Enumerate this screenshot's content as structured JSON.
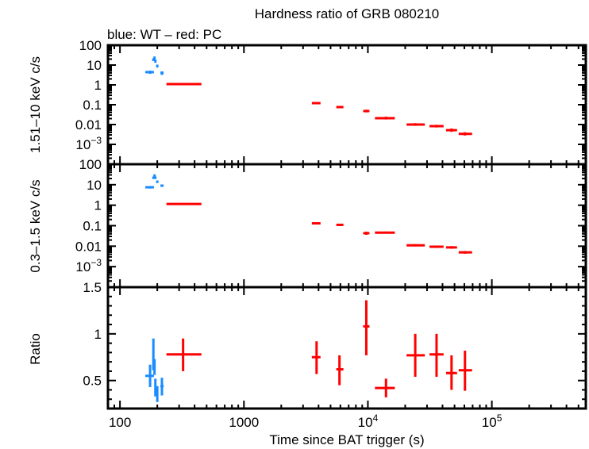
{
  "title": "Hardness ratio of GRB 080210",
  "subtitle": "blue: WT – red: PC",
  "xlabel": "Time since BAT trigger (s)",
  "colors": {
    "WT": "#1a8cff",
    "PC": "#ff0000",
    "frame": "#000000"
  },
  "chart_data": [
    {
      "type": "scatter",
      "panel": "hard band",
      "ylabel": "1.51–10 keV c/s",
      "xscale": "log",
      "yscale": "log",
      "xlim": [
        80,
        573000
      ],
      "ylim": [
        0.0001,
        100
      ],
      "x_ticks": [
        100,
        1000,
        10000,
        100000
      ],
      "y_ticks": [
        100,
        10,
        1,
        0.1,
        0.01,
        0.001
      ],
      "y_tick_labels": [
        "100",
        "10",
        "1",
        "0.1",
        "0.01",
        "10^−3"
      ],
      "series": [
        {
          "mode": "WT",
          "color": "#1a8cff",
          "points": [
            {
              "x": 175,
              "xlo": 160,
              "xhi": 188,
              "y": 4.4,
              "ylo": 3.6,
              "yhi": 5.2
            },
            {
              "x": 186,
              "xlo": 184,
              "xhi": 189,
              "y": 19,
              "ylo": 16,
              "yhi": 22
            },
            {
              "x": 190,
              "xlo": 188,
              "xhi": 192,
              "y": 23,
              "ylo": 19,
              "yhi": 27
            },
            {
              "x": 193,
              "xlo": 191,
              "xhi": 195,
              "y": 16,
              "ylo": 13,
              "yhi": 19
            },
            {
              "x": 200,
              "xlo": 198,
              "xhi": 202,
              "y": 9,
              "ylo": 7.5,
              "yhi": 10.5
            },
            {
              "x": 218,
              "xlo": 212,
              "xhi": 225,
              "y": 4,
              "ylo": 3.2,
              "yhi": 4.8
            }
          ]
        },
        {
          "mode": "PC",
          "color": "#ff0000",
          "points": [
            {
              "x": 323,
              "xlo": 237,
              "xhi": 454,
              "y": 1.1,
              "ylo": 1.0,
              "yhi": 1.25
            },
            {
              "x": 3855,
              "xlo": 3530,
              "xhi": 4150,
              "y": 0.12,
              "ylo": 0.105,
              "yhi": 0.135
            },
            {
              "x": 5900,
              "xlo": 5560,
              "xhi": 6350,
              "y": 0.076,
              "ylo": 0.066,
              "yhi": 0.087
            },
            {
              "x": 9710,
              "xlo": 9160,
              "xhi": 10300,
              "y": 0.048,
              "ylo": 0.041,
              "yhi": 0.056
            },
            {
              "x": 14000,
              "xlo": 11400,
              "xhi": 16500,
              "y": 0.021,
              "ylo": 0.018,
              "yhi": 0.025
            },
            {
              "x": 24100,
              "xlo": 20500,
              "xhi": 28800,
              "y": 0.01,
              "ylo": 0.0086,
              "yhi": 0.0118
            },
            {
              "x": 35800,
              "xlo": 31400,
              "xhi": 40800,
              "y": 0.0083,
              "ylo": 0.0071,
              "yhi": 0.0097
            },
            {
              "x": 47300,
              "xlo": 42700,
              "xhi": 52400,
              "y": 0.0052,
              "ylo": 0.0043,
              "yhi": 0.0063
            },
            {
              "x": 60700,
              "xlo": 54000,
              "xhi": 69300,
              "y": 0.0034,
              "ylo": 0.0028,
              "yhi": 0.0041
            }
          ]
        }
      ]
    },
    {
      "type": "scatter",
      "panel": "soft band",
      "ylabel": "0.3–1.5 keV c/s",
      "xscale": "log",
      "yscale": "log",
      "xlim": [
        80,
        573000
      ],
      "ylim": [
        0.0001,
        100
      ],
      "y_ticks": [
        100,
        10,
        1,
        0.1,
        0.01,
        0.001
      ],
      "y_tick_labels": [
        "100",
        "10",
        "1",
        "0.1",
        "0.01",
        "10^−3"
      ],
      "series": [
        {
          "mode": "WT",
          "color": "#1a8cff",
          "points": [
            {
              "x": 175,
              "xlo": 160,
              "xhi": 188,
              "y": 7.5,
              "ylo": 6.5,
              "yhi": 8.6
            },
            {
              "x": 186,
              "xlo": 184,
              "xhi": 189,
              "y": 22,
              "ylo": 19,
              "yhi": 25
            },
            {
              "x": 190,
              "xlo": 188,
              "xhi": 192,
              "y": 28,
              "ylo": 24,
              "yhi": 32
            },
            {
              "x": 193,
              "xlo": 191,
              "xhi": 195,
              "y": 22,
              "ylo": 19,
              "yhi": 25
            },
            {
              "x": 200,
              "xlo": 198,
              "xhi": 202,
              "y": 14,
              "ylo": 12,
              "yhi": 16
            },
            {
              "x": 218,
              "xlo": 212,
              "xhi": 225,
              "y": 9,
              "ylo": 7.8,
              "yhi": 10.2
            }
          ]
        },
        {
          "mode": "PC",
          "color": "#ff0000",
          "points": [
            {
              "x": 323,
              "xlo": 237,
              "xhi": 454,
              "y": 1.15,
              "ylo": 1.05,
              "yhi": 1.27
            },
            {
              "x": 3855,
              "xlo": 3530,
              "xhi": 4150,
              "y": 0.13,
              "ylo": 0.116,
              "yhi": 0.145
            },
            {
              "x": 5900,
              "xlo": 5560,
              "xhi": 6350,
              "y": 0.11,
              "ylo": 0.097,
              "yhi": 0.125
            },
            {
              "x": 9710,
              "xlo": 9160,
              "xhi": 10300,
              "y": 0.043,
              "ylo": 0.036,
              "yhi": 0.051
            },
            {
              "x": 14000,
              "xlo": 11400,
              "xhi": 16500,
              "y": 0.046,
              "ylo": 0.041,
              "yhi": 0.052
            },
            {
              "x": 24100,
              "xlo": 20500,
              "xhi": 28800,
              "y": 0.011,
              "ylo": 0.0097,
              "yhi": 0.0125
            },
            {
              "x": 35800,
              "xlo": 31400,
              "xhi": 40800,
              "y": 0.0094,
              "ylo": 0.0082,
              "yhi": 0.0108
            },
            {
              "x": 47300,
              "xlo": 42700,
              "xhi": 52400,
              "y": 0.0087,
              "ylo": 0.0075,
              "yhi": 0.0101
            },
            {
              "x": 60700,
              "xlo": 54000,
              "xhi": 69300,
              "y": 0.005,
              "ylo": 0.0043,
              "yhi": 0.0058
            }
          ]
        }
      ]
    },
    {
      "type": "scatter",
      "panel": "ratio",
      "ylabel": "Ratio",
      "xscale": "log",
      "yscale": "linear",
      "xlim": [
        80,
        573000
      ],
      "ylim": [
        0.2,
        1.5
      ],
      "x_ticks": [
        100,
        1000,
        10000,
        100000
      ],
      "x_tick_labels": [
        "100",
        "1000",
        "10^4",
        "10^5"
      ],
      "y_ticks": [
        0.5,
        1,
        1.5
      ],
      "y_tick_labels": [
        "0.5",
        "1",
        "1.5"
      ],
      "series": [
        {
          "mode": "WT",
          "color": "#1a8cff",
          "points": [
            {
              "x": 175,
              "xlo": 160,
              "xhi": 188,
              "y": 0.55,
              "ylo": 0.43,
              "yhi": 0.67
            },
            {
              "x": 186,
              "xlo": 184,
              "xhi": 189,
              "y": 0.78,
              "ylo": 0.61,
              "yhi": 0.95
            },
            {
              "x": 190,
              "xlo": 188,
              "xhi": 192,
              "y": 0.67,
              "ylo": 0.56,
              "yhi": 0.73
            },
            {
              "x": 193,
              "xlo": 191,
              "xhi": 195,
              "y": 0.43,
              "ylo": 0.33,
              "yhi": 0.52
            },
            {
              "x": 200,
              "xlo": 198,
              "xhi": 202,
              "y": 0.37,
              "ylo": 0.27,
              "yhi": 0.44
            },
            {
              "x": 218,
              "xlo": 212,
              "xhi": 225,
              "y": 0.44,
              "ylo": 0.34,
              "yhi": 0.53
            }
          ]
        },
        {
          "mode": "PC",
          "color": "#ff0000",
          "points": [
            {
              "x": 323,
              "xlo": 237,
              "xhi": 454,
              "y": 0.78,
              "ylo": 0.6,
              "yhi": 0.95
            },
            {
              "x": 3855,
              "xlo": 3530,
              "xhi": 4150,
              "y": 0.75,
              "ylo": 0.57,
              "yhi": 0.92
            },
            {
              "x": 5900,
              "xlo": 5560,
              "xhi": 6350,
              "y": 0.62,
              "ylo": 0.45,
              "yhi": 0.77
            },
            {
              "x": 9710,
              "xlo": 9160,
              "xhi": 10300,
              "y": 1.08,
              "ylo": 0.77,
              "yhi": 1.36
            },
            {
              "x": 14000,
              "xlo": 11400,
              "xhi": 16500,
              "y": 0.42,
              "ylo": 0.32,
              "yhi": 0.52
            },
            {
              "x": 24100,
              "xlo": 20500,
              "xhi": 28800,
              "y": 0.77,
              "ylo": 0.54,
              "yhi": 1.0
            },
            {
              "x": 35800,
              "xlo": 31400,
              "xhi": 40800,
              "y": 0.78,
              "ylo": 0.54,
              "yhi": 1.0
            },
            {
              "x": 47300,
              "xlo": 42700,
              "xhi": 52400,
              "y": 0.58,
              "ylo": 0.4,
              "yhi": 0.77
            },
            {
              "x": 60700,
              "xlo": 54000,
              "xhi": 69300,
              "y": 0.61,
              "ylo": 0.39,
              "yhi": 0.82
            }
          ]
        }
      ]
    }
  ]
}
